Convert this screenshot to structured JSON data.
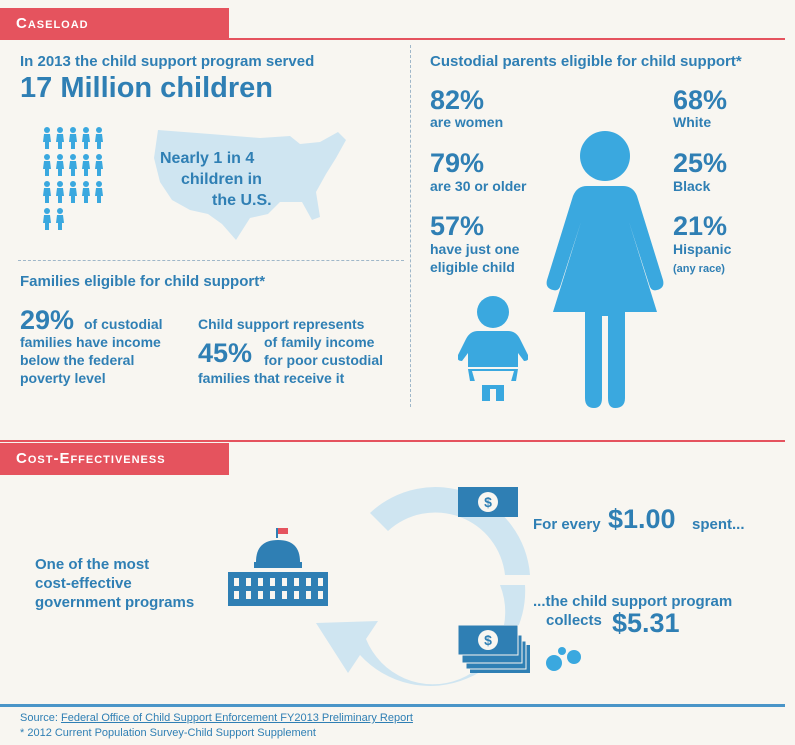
{
  "caseload": {
    "tag": "Caseload",
    "served_line": "In 2013 the child support program served",
    "children_count": "17 Million children",
    "nearly_text_1": "Nearly 1 in 4",
    "nearly_text_2": "children in",
    "nearly_text_3": "the U.S."
  },
  "families": {
    "heading": "Families eligible for child support*",
    "stat1_value": "29%",
    "stat1_text_a": "of custodial",
    "stat1_text_b": "families have income",
    "stat1_text_c": "below the federal",
    "stat1_text_d": "poverty level",
    "stat2_text_a": "Child support represents",
    "stat2_value": "45%",
    "stat2_text_b": "of family income",
    "stat2_text_c": "for poor custodial",
    "stat2_text_d": "families that receive it"
  },
  "custodial": {
    "heading": "Custodial parents eligible for child support*",
    "left_stats": [
      {
        "value": "82%",
        "label": "are women"
      },
      {
        "value": "79%",
        "label": "are 30 or older"
      },
      {
        "value": "57%",
        "label": "have just one",
        "label2": "eligible child"
      }
    ],
    "right_stats": [
      {
        "value": "68%",
        "label": "White"
      },
      {
        "value": "25%",
        "label": "Black"
      },
      {
        "value": "21%",
        "label": "Hispanic",
        "label2": "(any race)"
      }
    ]
  },
  "cost": {
    "tag": "Cost-Effectiveness",
    "left_text_1": "One of the most",
    "left_text_2": "cost-effective",
    "left_text_3": "government programs",
    "for_every": "For every",
    "dollar_one": "$1.00",
    "spent": "spent...",
    "collects_1": "...the child support program",
    "collects_2": "collects",
    "dollar_collect": "$5.31",
    "dollar_sign": "$"
  },
  "footer": {
    "source_label": "Source:",
    "source_link": "Federal Office of Child Support Enforcement FY2013 Preliminary Report",
    "note": "* 2012 Current Population Survey-Child Support Supplement"
  },
  "colors": {
    "accent_red": "#e5535e",
    "brand_blue": "#2f7fb4",
    "light_blue": "#3aa8df",
    "pale_blue": "#cfe5f1"
  }
}
